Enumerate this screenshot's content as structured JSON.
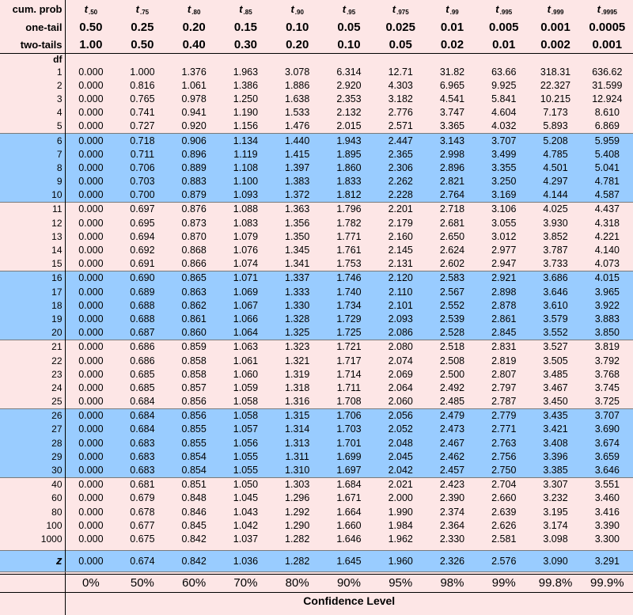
{
  "header": {
    "cum_prob_label": "cum. prob",
    "one_tail_label": "one-tail",
    "two_tails_label": "two-tails",
    "t_symbol": "t",
    "t_subscripts": [
      ".50",
      ".75",
      ".80",
      ".85",
      ".90",
      ".95",
      ".975",
      ".99",
      ".995",
      ".999",
      ".9995"
    ],
    "one_tail": [
      "0.50",
      "0.25",
      "0.20",
      "0.15",
      "0.10",
      "0.05",
      "0.025",
      "0.01",
      "0.005",
      "0.001",
      "0.0005"
    ],
    "two_tails": [
      "1.00",
      "0.50",
      "0.40",
      "0.30",
      "0.20",
      "0.10",
      "0.05",
      "0.02",
      "0.01",
      "0.002",
      "0.001"
    ]
  },
  "df_label": "df",
  "rows": [
    {
      "df": "1",
      "values": [
        "0.000",
        "1.000",
        "1.376",
        "1.963",
        "3.078",
        "6.314",
        "12.71",
        "31.82",
        "63.66",
        "318.31",
        "636.62"
      ]
    },
    {
      "df": "2",
      "values": [
        "0.000",
        "0.816",
        "1.061",
        "1.386",
        "1.886",
        "2.920",
        "4.303",
        "6.965",
        "9.925",
        "22.327",
        "31.599"
      ]
    },
    {
      "df": "3",
      "values": [
        "0.000",
        "0.765",
        "0.978",
        "1.250",
        "1.638",
        "2.353",
        "3.182",
        "4.541",
        "5.841",
        "10.215",
        "12.924"
      ]
    },
    {
      "df": "4",
      "values": [
        "0.000",
        "0.741",
        "0.941",
        "1.190",
        "1.533",
        "2.132",
        "2.776",
        "3.747",
        "4.604",
        "7.173",
        "8.610"
      ]
    },
    {
      "df": "5",
      "values": [
        "0.000",
        "0.727",
        "0.920",
        "1.156",
        "1.476",
        "2.015",
        "2.571",
        "3.365",
        "4.032",
        "5.893",
        "6.869"
      ]
    },
    {
      "df": "6",
      "values": [
        "0.000",
        "0.718",
        "0.906",
        "1.134",
        "1.440",
        "1.943",
        "2.447",
        "3.143",
        "3.707",
        "5.208",
        "5.959"
      ]
    },
    {
      "df": "7",
      "values": [
        "0.000",
        "0.711",
        "0.896",
        "1.119",
        "1.415",
        "1.895",
        "2.365",
        "2.998",
        "3.499",
        "4.785",
        "5.408"
      ]
    },
    {
      "df": "8",
      "values": [
        "0.000",
        "0.706",
        "0.889",
        "1.108",
        "1.397",
        "1.860",
        "2.306",
        "2.896",
        "3.355",
        "4.501",
        "5.041"
      ]
    },
    {
      "df": "9",
      "values": [
        "0.000",
        "0.703",
        "0.883",
        "1.100",
        "1.383",
        "1.833",
        "2.262",
        "2.821",
        "3.250",
        "4.297",
        "4.781"
      ]
    },
    {
      "df": "10",
      "values": [
        "0.000",
        "0.700",
        "0.879",
        "1.093",
        "1.372",
        "1.812",
        "2.228",
        "2.764",
        "3.169",
        "4.144",
        "4.587"
      ]
    },
    {
      "df": "11",
      "values": [
        "0.000",
        "0.697",
        "0.876",
        "1.088",
        "1.363",
        "1.796",
        "2.201",
        "2.718",
        "3.106",
        "4.025",
        "4.437"
      ]
    },
    {
      "df": "12",
      "values": [
        "0.000",
        "0.695",
        "0.873",
        "1.083",
        "1.356",
        "1.782",
        "2.179",
        "2.681",
        "3.055",
        "3.930",
        "4.318"
      ]
    },
    {
      "df": "13",
      "values": [
        "0.000",
        "0.694",
        "0.870",
        "1.079",
        "1.350",
        "1.771",
        "2.160",
        "2.650",
        "3.012",
        "3.852",
        "4.221"
      ]
    },
    {
      "df": "14",
      "values": [
        "0.000",
        "0.692",
        "0.868",
        "1.076",
        "1.345",
        "1.761",
        "2.145",
        "2.624",
        "2.977",
        "3.787",
        "4.140"
      ]
    },
    {
      "df": "15",
      "values": [
        "0.000",
        "0.691",
        "0.866",
        "1.074",
        "1.341",
        "1.753",
        "2.131",
        "2.602",
        "2.947",
        "3.733",
        "4.073"
      ]
    },
    {
      "df": "16",
      "values": [
        "0.000",
        "0.690",
        "0.865",
        "1.071",
        "1.337",
        "1.746",
        "2.120",
        "2.583",
        "2.921",
        "3.686",
        "4.015"
      ]
    },
    {
      "df": "17",
      "values": [
        "0.000",
        "0.689",
        "0.863",
        "1.069",
        "1.333",
        "1.740",
        "2.110",
        "2.567",
        "2.898",
        "3.646",
        "3.965"
      ]
    },
    {
      "df": "18",
      "values": [
        "0.000",
        "0.688",
        "0.862",
        "1.067",
        "1.330",
        "1.734",
        "2.101",
        "2.552",
        "2.878",
        "3.610",
        "3.922"
      ]
    },
    {
      "df": "19",
      "values": [
        "0.000",
        "0.688",
        "0.861",
        "1.066",
        "1.328",
        "1.729",
        "2.093",
        "2.539",
        "2.861",
        "3.579",
        "3.883"
      ]
    },
    {
      "df": "20",
      "values": [
        "0.000",
        "0.687",
        "0.860",
        "1.064",
        "1.325",
        "1.725",
        "2.086",
        "2.528",
        "2.845",
        "3.552",
        "3.850"
      ]
    },
    {
      "df": "21",
      "values": [
        "0.000",
        "0.686",
        "0.859",
        "1.063",
        "1.323",
        "1.721",
        "2.080",
        "2.518",
        "2.831",
        "3.527",
        "3.819"
      ]
    },
    {
      "df": "22",
      "values": [
        "0.000",
        "0.686",
        "0.858",
        "1.061",
        "1.321",
        "1.717",
        "2.074",
        "2.508",
        "2.819",
        "3.505",
        "3.792"
      ]
    },
    {
      "df": "23",
      "values": [
        "0.000",
        "0.685",
        "0.858",
        "1.060",
        "1.319",
        "1.714",
        "2.069",
        "2.500",
        "2.807",
        "3.485",
        "3.768"
      ]
    },
    {
      "df": "24",
      "values": [
        "0.000",
        "0.685",
        "0.857",
        "1.059",
        "1.318",
        "1.711",
        "2.064",
        "2.492",
        "2.797",
        "3.467",
        "3.745"
      ]
    },
    {
      "df": "25",
      "values": [
        "0.000",
        "0.684",
        "0.856",
        "1.058",
        "1.316",
        "1.708",
        "2.060",
        "2.485",
        "2.787",
        "3.450",
        "3.725"
      ]
    },
    {
      "df": "26",
      "values": [
        "0.000",
        "0.684",
        "0.856",
        "1.058",
        "1.315",
        "1.706",
        "2.056",
        "2.479",
        "2.779",
        "3.435",
        "3.707"
      ]
    },
    {
      "df": "27",
      "values": [
        "0.000",
        "0.684",
        "0.855",
        "1.057",
        "1.314",
        "1.703",
        "2.052",
        "2.473",
        "2.771",
        "3.421",
        "3.690"
      ]
    },
    {
      "df": "28",
      "values": [
        "0.000",
        "0.683",
        "0.855",
        "1.056",
        "1.313",
        "1.701",
        "2.048",
        "2.467",
        "2.763",
        "3.408",
        "3.674"
      ]
    },
    {
      "df": "29",
      "values": [
        "0.000",
        "0.683",
        "0.854",
        "1.055",
        "1.311",
        "1.699",
        "2.045",
        "2.462",
        "2.756",
        "3.396",
        "3.659"
      ]
    },
    {
      "df": "30",
      "values": [
        "0.000",
        "0.683",
        "0.854",
        "1.055",
        "1.310",
        "1.697",
        "2.042",
        "2.457",
        "2.750",
        "3.385",
        "3.646"
      ]
    },
    {
      "df": "40",
      "values": [
        "0.000",
        "0.681",
        "0.851",
        "1.050",
        "1.303",
        "1.684",
        "2.021",
        "2.423",
        "2.704",
        "3.307",
        "3.551"
      ]
    },
    {
      "df": "60",
      "values": [
        "0.000",
        "0.679",
        "0.848",
        "1.045",
        "1.296",
        "1.671",
        "2.000",
        "2.390",
        "2.660",
        "3.232",
        "3.460"
      ]
    },
    {
      "df": "80",
      "values": [
        "0.000",
        "0.678",
        "0.846",
        "1.043",
        "1.292",
        "1.664",
        "1.990",
        "2.374",
        "2.639",
        "3.195",
        "3.416"
      ]
    },
    {
      "df": "100",
      "values": [
        "0.000",
        "0.677",
        "0.845",
        "1.042",
        "1.290",
        "1.660",
        "1.984",
        "2.364",
        "2.626",
        "3.174",
        "3.390"
      ]
    },
    {
      "df": "1000",
      "values": [
        "0.000",
        "0.675",
        "0.842",
        "1.037",
        "1.282",
        "1.646",
        "1.962",
        "2.330",
        "2.581",
        "3.098",
        "3.300"
      ]
    }
  ],
  "z_row": {
    "label": "z",
    "values": [
      "0.000",
      "0.674",
      "0.842",
      "1.036",
      "1.282",
      "1.645",
      "1.960",
      "2.326",
      "2.576",
      "3.090",
      "3.291"
    ]
  },
  "confidence": {
    "levels": [
      "0%",
      "50%",
      "60%",
      "70%",
      "80%",
      "90%",
      "95%",
      "98%",
      "99%",
      "99.8%",
      "99.9%"
    ],
    "label": "Confidence Level"
  },
  "colors": {
    "background": "#fde6e6",
    "band": "#99ccff"
  }
}
